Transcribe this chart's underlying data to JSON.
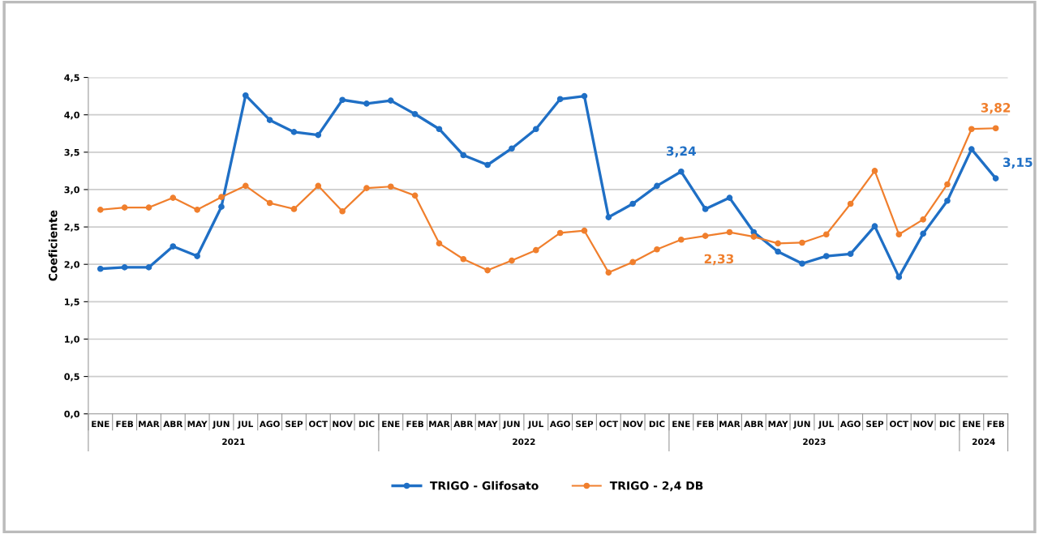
{
  "chart_data": {
    "type": "line",
    "ylabel": "Coeficiente",
    "categories": [
      "ENE",
      "FEB",
      "MAR",
      "ABR",
      "MAY",
      "JUN",
      "JUL",
      "AGO",
      "SEP",
      "OCT",
      "NOV",
      "DIC",
      "ENE",
      "FEB",
      "MAR",
      "ABR",
      "MAY",
      "JUN",
      "JUL",
      "AGO",
      "SEP",
      "OCT",
      "NOV",
      "DIC",
      "ENE",
      "FEB",
      "MAR",
      "ABR",
      "MAY",
      "JUN",
      "JUL",
      "AGO",
      "SEP",
      "OCT",
      "NOV",
      "DIC",
      "ENE",
      "FEB"
    ],
    "annotations": [
      "2021",
      "2022",
      "2023",
      "2024"
    ],
    "series": [
      {
        "name": "TRIGO - Glifosato",
        "color": "#1f6fc5",
        "values": [
          1.94,
          1.96,
          1.96,
          2.24,
          2.11,
          2.77,
          4.26,
          3.93,
          3.77,
          3.73,
          4.2,
          4.15,
          4.19,
          4.01,
          3.81,
          3.46,
          3.33,
          3.55,
          3.81,
          4.21,
          4.25,
          2.63,
          2.81,
          3.05,
          3.24,
          2.74,
          2.89,
          2.43,
          2.17,
          2.01,
          2.11,
          2.14,
          2.51,
          1.83,
          2.41,
          2.85,
          3.54,
          3.15
        ],
        "value_labels": [
          null,
          null,
          null,
          null,
          null,
          null,
          null,
          null,
          null,
          null,
          null,
          null,
          null,
          null,
          null,
          null,
          null,
          null,
          null,
          null,
          null,
          null,
          null,
          null,
          "3,24",
          null,
          null,
          null,
          null,
          null,
          null,
          null,
          null,
          null,
          null,
          null,
          null,
          "3,15"
        ]
      },
      {
        "name": "TRIGO - 2,4 DB",
        "color": "#f07f2d",
        "values": [
          2.73,
          2.76,
          2.76,
          2.89,
          2.73,
          2.9,
          3.05,
          2.82,
          2.74,
          3.05,
          2.71,
          3.02,
          3.04,
          2.92,
          2.28,
          2.07,
          1.92,
          2.05,
          2.19,
          2.42,
          2.45,
          1.89,
          2.03,
          2.2,
          2.33,
          2.38,
          2.43,
          2.37,
          2.28,
          2.29,
          2.4,
          2.81,
          3.25,
          2.4,
          2.6,
          3.07,
          3.81,
          3.82
        ],
        "value_labels": [
          null,
          null,
          null,
          null,
          null,
          null,
          null,
          null,
          null,
          null,
          null,
          null,
          null,
          null,
          null,
          null,
          null,
          null,
          null,
          null,
          null,
          null,
          null,
          null,
          "2,33",
          null,
          null,
          null,
          null,
          null,
          null,
          null,
          null,
          null,
          null,
          null,
          null,
          "3,82"
        ]
      }
    ],
    "ylim": [
      0,
      4.5
    ],
    "yticks": [
      {
        "value": 0,
        "label": "0,0"
      },
      {
        "value": 0.5,
        "label": "0,5"
      },
      {
        "value": 1,
        "label": "1,0"
      },
      {
        "value": 1.5,
        "label": "1,5"
      },
      {
        "value": 2,
        "label": "2,0"
      },
      {
        "value": 2.5,
        "label": "2,5"
      },
      {
        "value": 3,
        "label": "3,0"
      },
      {
        "value": 3.5,
        "label": "3,5"
      },
      {
        "value": 4,
        "label": "4,0"
      },
      {
        "value": 4.5,
        "label": "4,5"
      }
    ],
    "grid": "y",
    "legend": "bottom",
    "marker": "circle",
    "line_style": "solid"
  }
}
